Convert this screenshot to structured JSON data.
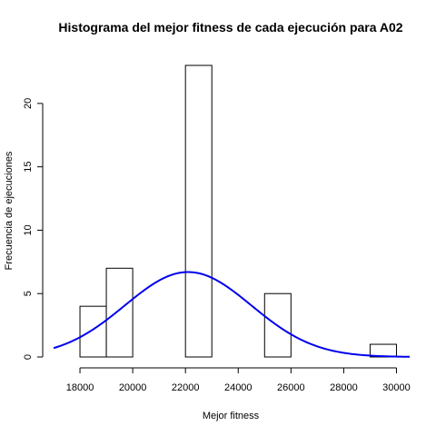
{
  "chart_data": {
    "type": "bar",
    "title": "Histograma del mejor fitness de cada ejecución para A02",
    "xlabel": "Mejor fitness",
    "ylabel": "Frecuencia de ejecuciones",
    "xlim": [
      17000,
      30500
    ],
    "ylim": [
      0,
      23
    ],
    "x_ticks": [
      18000,
      20000,
      22000,
      24000,
      26000,
      28000,
      30000
    ],
    "y_ticks": [
      0,
      5,
      10,
      15,
      20
    ],
    "bins": [
      {
        "start": 18000,
        "end": 19000,
        "count": 4
      },
      {
        "start": 19000,
        "end": 20000,
        "count": 7
      },
      {
        "start": 20000,
        "end": 21000,
        "count": 0
      },
      {
        "start": 21000,
        "end": 22000,
        "count": 0
      },
      {
        "start": 22000,
        "end": 23000,
        "count": 23
      },
      {
        "start": 23000,
        "end": 24000,
        "count": 0
      },
      {
        "start": 24000,
        "end": 25000,
        "count": 0
      },
      {
        "start": 25000,
        "end": 26000,
        "count": 5
      },
      {
        "start": 26000,
        "end": 27000,
        "count": 0
      },
      {
        "start": 27000,
        "end": 28000,
        "count": 0
      },
      {
        "start": 28000,
        "end": 29000,
        "count": 0
      },
      {
        "start": 29000,
        "end": 30000,
        "count": 1
      }
    ],
    "density_curve": {
      "mean": 22100,
      "sd": 2400,
      "peak": 6.7,
      "color": "#0000ee",
      "x_range": [
        17000,
        30500
      ]
    },
    "grid": false,
    "legend": "none"
  }
}
